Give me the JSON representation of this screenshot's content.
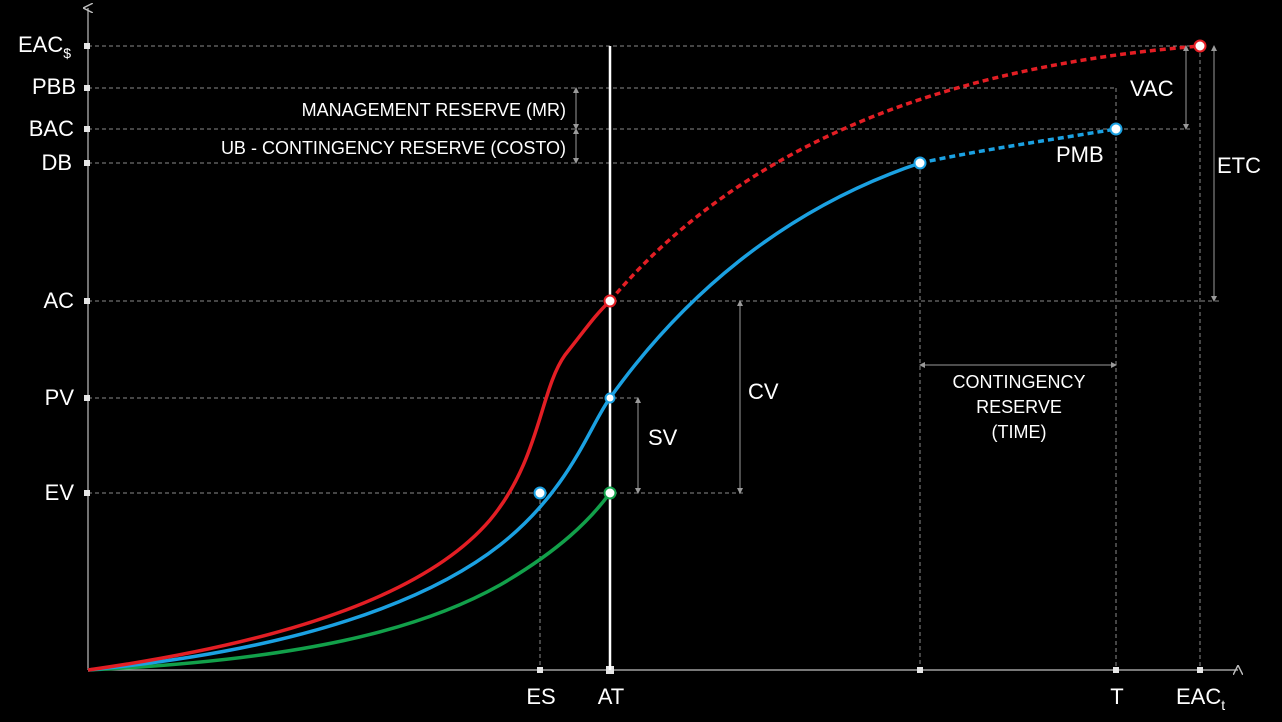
{
  "y_axis_labels": {
    "eac_cost": "EAC",
    "eac_cost_sub": "$",
    "pbb": "PBB",
    "bac": "BAC",
    "db": "DB",
    "ac": "AC",
    "pv": "PV",
    "ev": "EV"
  },
  "x_axis_labels": {
    "es": "ES",
    "at": "AT",
    "t": "T",
    "eac_time": "EAC",
    "eac_time_sub": "t"
  },
  "annotations": {
    "management_reserve": "MANAGEMENT RESERVE (MR)",
    "contingency_cost": "UB - CONTINGENCY RESERVE (COSTO)",
    "vac": "VAC",
    "etc": "ETC",
    "pmb": "PMB",
    "cv": "CV",
    "sv": "SV",
    "contingency_time_line1": "CONTINGENCY",
    "contingency_time_line2": "RESERVE",
    "contingency_time_line3": "(TIME)"
  },
  "colors": {
    "background": "#000000",
    "actual_cost_curve": "#e31e24",
    "planned_value_curve": "#1ba1e2",
    "earned_value_curve": "#12a04a",
    "time_now_line": "#ffffff",
    "guides": "#8a8a8a"
  }
}
